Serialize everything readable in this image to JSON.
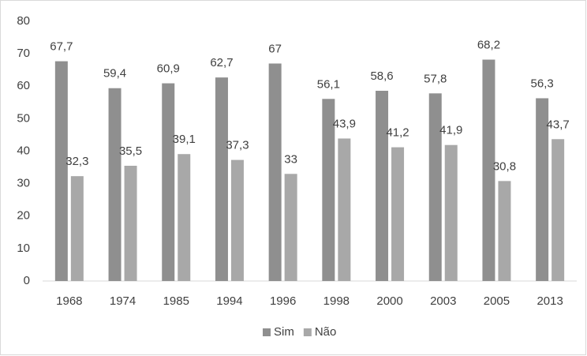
{
  "chart_data": {
    "type": "bar",
    "categories": [
      "1968",
      "1974",
      "1985",
      "1994",
      "1996",
      "1998",
      "2000",
      "2003",
      "2005",
      "2013"
    ],
    "series": [
      {
        "name": "Sim",
        "color": "#8f8f8f",
        "values": [
          67.7,
          59.4,
          60.9,
          62.7,
          67,
          56.1,
          58.6,
          57.8,
          68.2,
          56.3
        ],
        "value_labels": [
          "67,7",
          "59,4",
          "60,9",
          "62,7",
          "67",
          "56,1",
          "58,6",
          "57,8",
          "68,2",
          "56,3"
        ]
      },
      {
        "name": "Não",
        "color": "#a8a8a8",
        "values": [
          32.3,
          35.5,
          39.1,
          37.3,
          33,
          43.9,
          41.2,
          41.9,
          30.8,
          43.7
        ],
        "value_labels": [
          "32,3",
          "35,5",
          "39,1",
          "37,3",
          "33",
          "43,9",
          "41,2",
          "41,9",
          "30,8",
          "43,7"
        ]
      }
    ],
    "ylim": [
      0,
      80
    ],
    "yticks": [
      0,
      10,
      20,
      30,
      40,
      50,
      60,
      70,
      80
    ],
    "grid": false,
    "legend": "bottom"
  }
}
